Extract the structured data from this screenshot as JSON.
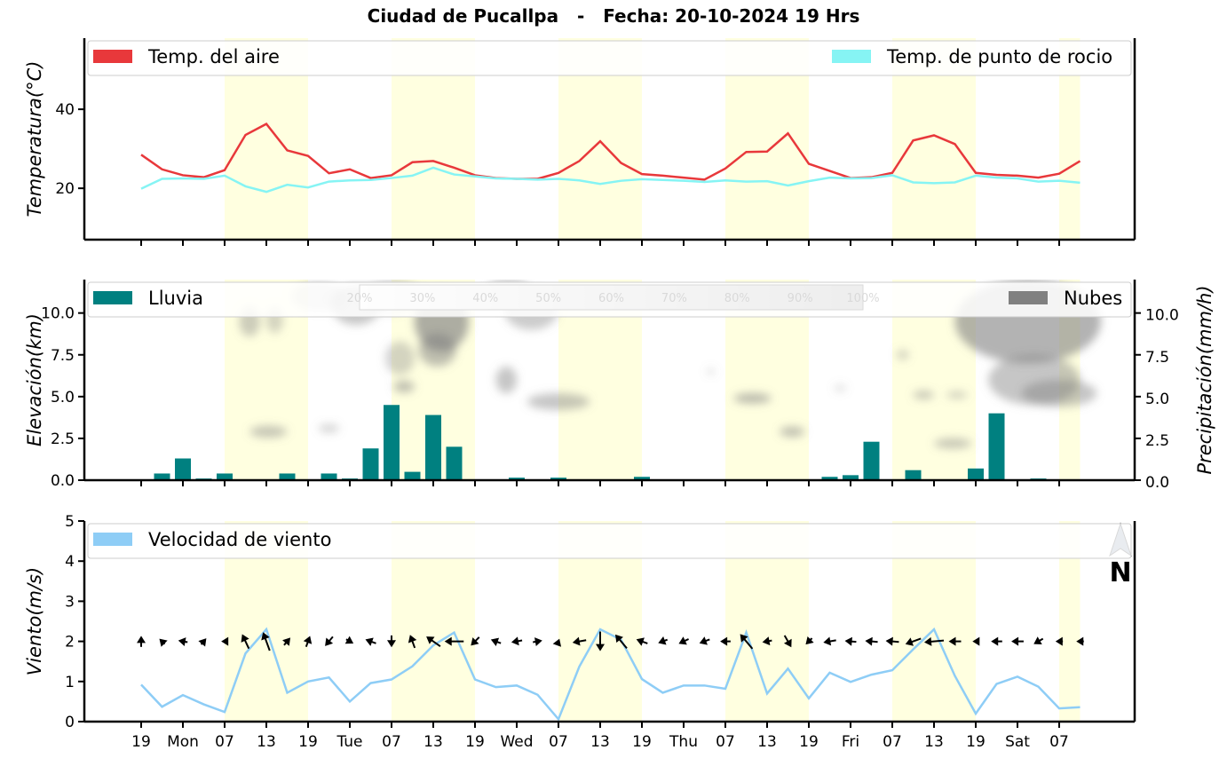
{
  "title": "Ciudad de Pucallpa   -   Fecha: 20-10-2024 19 Hrs",
  "time_ticks": [
    "19",
    "Mon",
    "07",
    "13",
    "19",
    "Tue",
    "07",
    "13",
    "19",
    "Wed",
    "07",
    "13",
    "19",
    "Thu",
    "07",
    "13",
    "19",
    "Fri",
    "07",
    "13",
    "19",
    "Sat",
    "07"
  ],
  "daylight_bands": [
    [
      2,
      4
    ],
    [
      6,
      8
    ],
    [
      10,
      12
    ],
    [
      14,
      16
    ],
    [
      18,
      20
    ],
    [
      22,
      22.5
    ]
  ],
  "colors": {
    "air_temp": "#e8383b",
    "dew_point": "#86f4f4",
    "rain": "#008080",
    "clouds": "#808080",
    "wind": "#8ecdf6",
    "daylight": "#ffffe0",
    "compass": "#6f7f99"
  },
  "compass": {
    "icon": "north-arrow-icon",
    "label": "N"
  },
  "chart_data": [
    {
      "type": "line",
      "ylabel": "Temperatura(°C)",
      "ylim": [
        7,
        58
      ],
      "yticks": [
        "20",
        "40"
      ],
      "legend": "top",
      "grid": false,
      "series": [
        {
          "name": "Temp. del aire",
          "values": [
            28.5,
            24.8,
            23.3,
            22.8,
            24.6,
            33.5,
            36.3,
            29.6,
            28.2,
            23.8,
            24.8,
            22.6,
            23.3,
            26.6,
            26.9,
            25.2,
            23.3,
            22.6,
            22.4,
            22.4,
            23.9,
            26.9,
            31.9,
            26.4,
            23.6,
            23.2,
            22.7,
            22.2,
            25.0,
            29.2,
            29.3,
            33.9,
            26.2,
            24.4,
            22.6,
            22.8,
            23.9,
            32.1,
            33.4,
            31.2,
            23.9,
            23.4,
            23.2,
            22.7,
            23.7,
            26.9
          ]
        },
        {
          "name": "Temp. de punto de rocio",
          "values": [
            19.9,
            22.4,
            22.5,
            22.4,
            23.2,
            20.5,
            19.1,
            20.9,
            20.2,
            21.7,
            22.0,
            22.1,
            22.6,
            23.2,
            25.2,
            23.5,
            23.0,
            22.5,
            22.4,
            22.2,
            22.4,
            22.0,
            21.1,
            21.9,
            22.3,
            22.1,
            21.9,
            21.6,
            22.0,
            21.7,
            21.8,
            20.7,
            21.8,
            22.7,
            22.5,
            22.6,
            23.3,
            21.5,
            21.3,
            21.5,
            23.2,
            22.7,
            22.5,
            21.7,
            21.9,
            21.4
          ]
        }
      ]
    },
    {
      "type": "bar",
      "ylabel": "Elevación(km)",
      "ylabel_right": "Precipitación(mm/h)",
      "ylim": [
        0,
        12
      ],
      "yticks": [
        "0.0",
        "2.5",
        "5.0",
        "7.5",
        "10.0"
      ],
      "yticks_right": [
        "0.0",
        "2.5",
        "5.0",
        "7.5",
        "10.0"
      ],
      "legend": "top",
      "series": [
        {
          "name": "Lluvia",
          "values": [
            0,
            0.4,
            1.3,
            0.1,
            0.4,
            0.05,
            0.05,
            0.4,
            0.05,
            0.4,
            0.1,
            1.9,
            4.5,
            0.5,
            3.9,
            2.0,
            0.05,
            0,
            0.15,
            0.05,
            0.15,
            0.05,
            0.05,
            0.05,
            0.2,
            0,
            0,
            0,
            0,
            0,
            0,
            0,
            0,
            0.2,
            0.3,
            2.3,
            0,
            0.6,
            0.05,
            0.05,
            0.7,
            4.0,
            0.05,
            0.1,
            0,
            0
          ]
        },
        {
          "name": "Nubes"
        }
      ],
      "colorbar": {
        "labels": [
          "20%",
          "30%",
          "40%",
          "50%",
          "60%",
          "70%",
          "80%",
          "90%",
          "100%"
        ]
      },
      "cloud_patches": [
        {
          "x": 5.2,
          "y": 9.5,
          "rx": 0.5,
          "ry": 0.9,
          "level": 0.4
        },
        {
          "x": 6.4,
          "y": 9.6,
          "rx": 0.4,
          "ry": 0.8,
          "level": 0.35
        },
        {
          "x": 6.1,
          "y": 2.9,
          "rx": 0.9,
          "ry": 0.35,
          "level": 0.45
        },
        {
          "x": 9.0,
          "y": 3.1,
          "rx": 0.5,
          "ry": 0.25,
          "level": 0.35
        },
        {
          "x": 8.5,
          "y": 11.0,
          "rx": 1.3,
          "ry": 0.9,
          "level": 0.3
        },
        {
          "x": 10.3,
          "y": 10.5,
          "rx": 1.2,
          "ry": 1.2,
          "level": 0.45
        },
        {
          "x": 12.0,
          "y": 11.0,
          "rx": 1.5,
          "ry": 1.0,
          "level": 0.35
        },
        {
          "x": 14.4,
          "y": 9.5,
          "rx": 1.3,
          "ry": 1.8,
          "level": 0.65
        },
        {
          "x": 14.2,
          "y": 7.8,
          "rx": 0.9,
          "ry": 1.0,
          "level": 0.5
        },
        {
          "x": 12.4,
          "y": 7.3,
          "rx": 0.7,
          "ry": 1.0,
          "level": 0.35
        },
        {
          "x": 12.6,
          "y": 5.6,
          "rx": 0.5,
          "ry": 0.35,
          "level": 0.5
        },
        {
          "x": 17.5,
          "y": 6.0,
          "rx": 0.5,
          "ry": 0.8,
          "level": 0.45
        },
        {
          "x": 17.6,
          "y": 11.5,
          "rx": 1.0,
          "ry": 0.7,
          "level": 0.3
        },
        {
          "x": 18.7,
          "y": 10.2,
          "rx": 1.3,
          "ry": 1.2,
          "level": 0.4
        },
        {
          "x": 20.0,
          "y": 4.7,
          "rx": 1.5,
          "ry": 0.5,
          "level": 0.45
        },
        {
          "x": 27.3,
          "y": 6.5,
          "rx": 0.2,
          "ry": 0.2,
          "level": 0.25
        },
        {
          "x": 29.3,
          "y": 4.9,
          "rx": 0.9,
          "ry": 0.3,
          "level": 0.55
        },
        {
          "x": 31.2,
          "y": 2.9,
          "rx": 0.6,
          "ry": 0.3,
          "level": 0.5
        },
        {
          "x": 33.5,
          "y": 5.5,
          "rx": 0.3,
          "ry": 0.2,
          "level": 0.25
        },
        {
          "x": 36.5,
          "y": 7.5,
          "rx": 0.3,
          "ry": 0.3,
          "level": 0.35
        },
        {
          "x": 37.5,
          "y": 5.1,
          "rx": 0.5,
          "ry": 0.25,
          "level": 0.45
        },
        {
          "x": 39.1,
          "y": 5.1,
          "rx": 0.5,
          "ry": 0.2,
          "level": 0.4
        },
        {
          "x": 38.9,
          "y": 2.2,
          "rx": 0.9,
          "ry": 0.3,
          "level": 0.45
        },
        {
          "x": 42.5,
          "y": 9.5,
          "rx": 3.5,
          "ry": 2.5,
          "level": 0.6
        },
        {
          "x": 42.8,
          "y": 6.0,
          "rx": 2.2,
          "ry": 1.5,
          "level": 0.45
        },
        {
          "x": 44.0,
          "y": 5.2,
          "rx": 1.8,
          "ry": 0.8,
          "level": 0.45
        }
      ]
    },
    {
      "type": "line",
      "ylabel": "Viento(m/s)",
      "ylim": [
        0,
        5
      ],
      "yticks": [
        "0",
        "1",
        "2",
        "3",
        "4",
        "5"
      ],
      "legend": "top-left",
      "series": [
        {
          "name": "Velocidad de viento",
          "values": [
            0.92,
            0.37,
            0.66,
            0.43,
            0.24,
            1.7,
            2.3,
            0.72,
            1.0,
            1.1,
            0.5,
            0.96,
            1.05,
            1.38,
            1.9,
            2.22,
            1.05,
            0.86,
            0.9,
            0.67,
            0.06,
            1.37,
            2.3,
            2.04,
            1.06,
            0.72,
            0.9,
            0.9,
            0.82,
            2.22,
            0.7,
            1.32,
            0.58,
            1.22,
            0.99,
            1.17,
            1.28,
            1.8,
            2.3,
            1.14,
            0.2,
            0.94,
            1.12,
            0.87,
            0.33,
            0.36
          ]
        }
      ],
      "wind_direction_deg": [
        180,
        135,
        100,
        220,
        90,
        155,
        160,
        220,
        200,
        40,
        300,
        110,
        0,
        160,
        125,
        90,
        45,
        110,
        80,
        260,
        200,
        80,
        0,
        140,
        110,
        70,
        65,
        70,
        90,
        140,
        80,
        330,
        45,
        80,
        95,
        95,
        95,
        70,
        85,
        90,
        90,
        90,
        90,
        60,
        90,
        90
      ]
    }
  ]
}
